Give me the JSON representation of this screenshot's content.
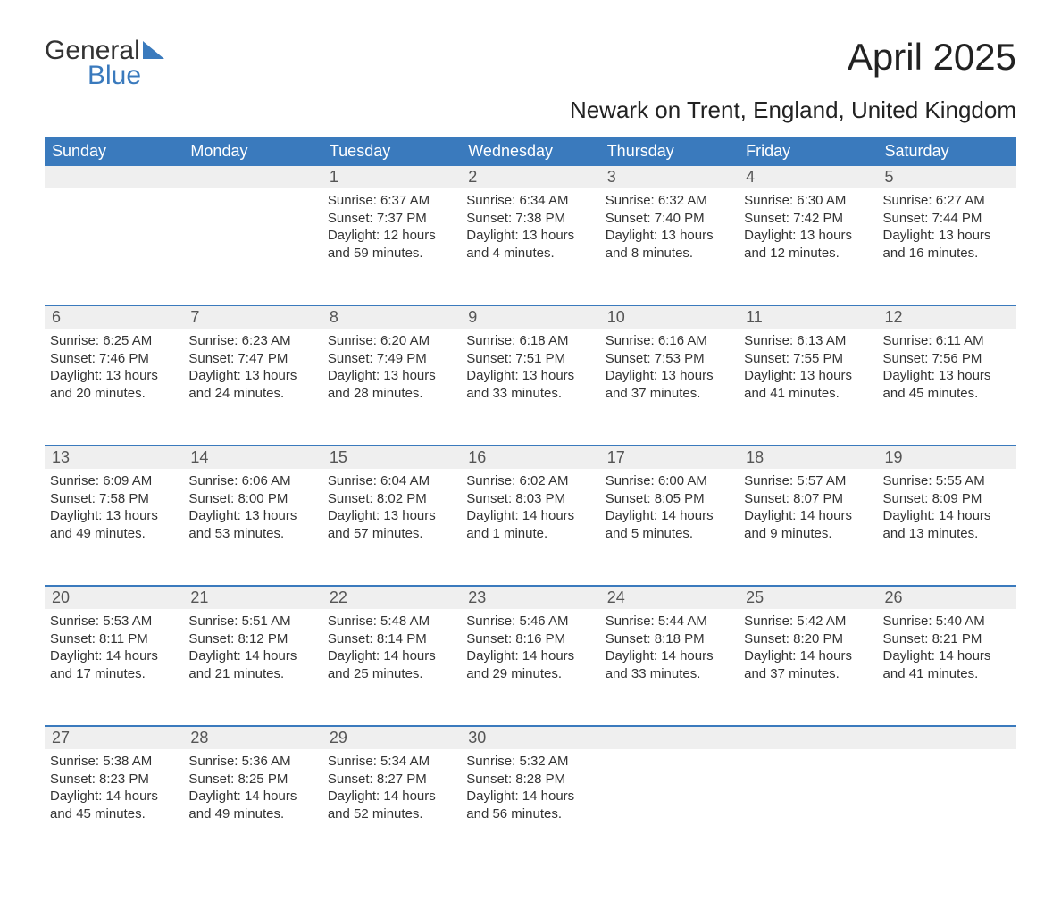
{
  "logo": {
    "text1": "General",
    "text2": "Blue"
  },
  "title": "April 2025",
  "location": "Newark on Trent, England, United Kingdom",
  "colors": {
    "header_bg": "#3a7abd",
    "header_text": "#ffffff",
    "daynum_bg": "#efefef",
    "row_border": "#3a7abd",
    "body_text": "#333333",
    "logo_blue": "#3a7abd"
  },
  "weekdays": [
    "Sunday",
    "Monday",
    "Tuesday",
    "Wednesday",
    "Thursday",
    "Friday",
    "Saturday"
  ],
  "weeks": [
    [
      null,
      null,
      {
        "n": "1",
        "sr": "6:37 AM",
        "ss": "7:37 PM",
        "dl": "12 hours and 59 minutes."
      },
      {
        "n": "2",
        "sr": "6:34 AM",
        "ss": "7:38 PM",
        "dl": "13 hours and 4 minutes."
      },
      {
        "n": "3",
        "sr": "6:32 AM",
        "ss": "7:40 PM",
        "dl": "13 hours and 8 minutes."
      },
      {
        "n": "4",
        "sr": "6:30 AM",
        "ss": "7:42 PM",
        "dl": "13 hours and 12 minutes."
      },
      {
        "n": "5",
        "sr": "6:27 AM",
        "ss": "7:44 PM",
        "dl": "13 hours and 16 minutes."
      }
    ],
    [
      {
        "n": "6",
        "sr": "6:25 AM",
        "ss": "7:46 PM",
        "dl": "13 hours and 20 minutes."
      },
      {
        "n": "7",
        "sr": "6:23 AM",
        "ss": "7:47 PM",
        "dl": "13 hours and 24 minutes."
      },
      {
        "n": "8",
        "sr": "6:20 AM",
        "ss": "7:49 PM",
        "dl": "13 hours and 28 minutes."
      },
      {
        "n": "9",
        "sr": "6:18 AM",
        "ss": "7:51 PM",
        "dl": "13 hours and 33 minutes."
      },
      {
        "n": "10",
        "sr": "6:16 AM",
        "ss": "7:53 PM",
        "dl": "13 hours and 37 minutes."
      },
      {
        "n": "11",
        "sr": "6:13 AM",
        "ss": "7:55 PM",
        "dl": "13 hours and 41 minutes."
      },
      {
        "n": "12",
        "sr": "6:11 AM",
        "ss": "7:56 PM",
        "dl": "13 hours and 45 minutes."
      }
    ],
    [
      {
        "n": "13",
        "sr": "6:09 AM",
        "ss": "7:58 PM",
        "dl": "13 hours and 49 minutes."
      },
      {
        "n": "14",
        "sr": "6:06 AM",
        "ss": "8:00 PM",
        "dl": "13 hours and 53 minutes."
      },
      {
        "n": "15",
        "sr": "6:04 AM",
        "ss": "8:02 PM",
        "dl": "13 hours and 57 minutes."
      },
      {
        "n": "16",
        "sr": "6:02 AM",
        "ss": "8:03 PM",
        "dl": "14 hours and 1 minute."
      },
      {
        "n": "17",
        "sr": "6:00 AM",
        "ss": "8:05 PM",
        "dl": "14 hours and 5 minutes."
      },
      {
        "n": "18",
        "sr": "5:57 AM",
        "ss": "8:07 PM",
        "dl": "14 hours and 9 minutes."
      },
      {
        "n": "19",
        "sr": "5:55 AM",
        "ss": "8:09 PM",
        "dl": "14 hours and 13 minutes."
      }
    ],
    [
      {
        "n": "20",
        "sr": "5:53 AM",
        "ss": "8:11 PM",
        "dl": "14 hours and 17 minutes."
      },
      {
        "n": "21",
        "sr": "5:51 AM",
        "ss": "8:12 PM",
        "dl": "14 hours and 21 minutes."
      },
      {
        "n": "22",
        "sr": "5:48 AM",
        "ss": "8:14 PM",
        "dl": "14 hours and 25 minutes."
      },
      {
        "n": "23",
        "sr": "5:46 AM",
        "ss": "8:16 PM",
        "dl": "14 hours and 29 minutes."
      },
      {
        "n": "24",
        "sr": "5:44 AM",
        "ss": "8:18 PM",
        "dl": "14 hours and 33 minutes."
      },
      {
        "n": "25",
        "sr": "5:42 AM",
        "ss": "8:20 PM",
        "dl": "14 hours and 37 minutes."
      },
      {
        "n": "26",
        "sr": "5:40 AM",
        "ss": "8:21 PM",
        "dl": "14 hours and 41 minutes."
      }
    ],
    [
      {
        "n": "27",
        "sr": "5:38 AM",
        "ss": "8:23 PM",
        "dl": "14 hours and 45 minutes."
      },
      {
        "n": "28",
        "sr": "5:36 AM",
        "ss": "8:25 PM",
        "dl": "14 hours and 49 minutes."
      },
      {
        "n": "29",
        "sr": "5:34 AM",
        "ss": "8:27 PM",
        "dl": "14 hours and 52 minutes."
      },
      {
        "n": "30",
        "sr": "5:32 AM",
        "ss": "8:28 PM",
        "dl": "14 hours and 56 minutes."
      },
      null,
      null,
      null
    ]
  ],
  "labels": {
    "sunrise": "Sunrise: ",
    "sunset": "Sunset: ",
    "daylight": "Daylight: "
  }
}
